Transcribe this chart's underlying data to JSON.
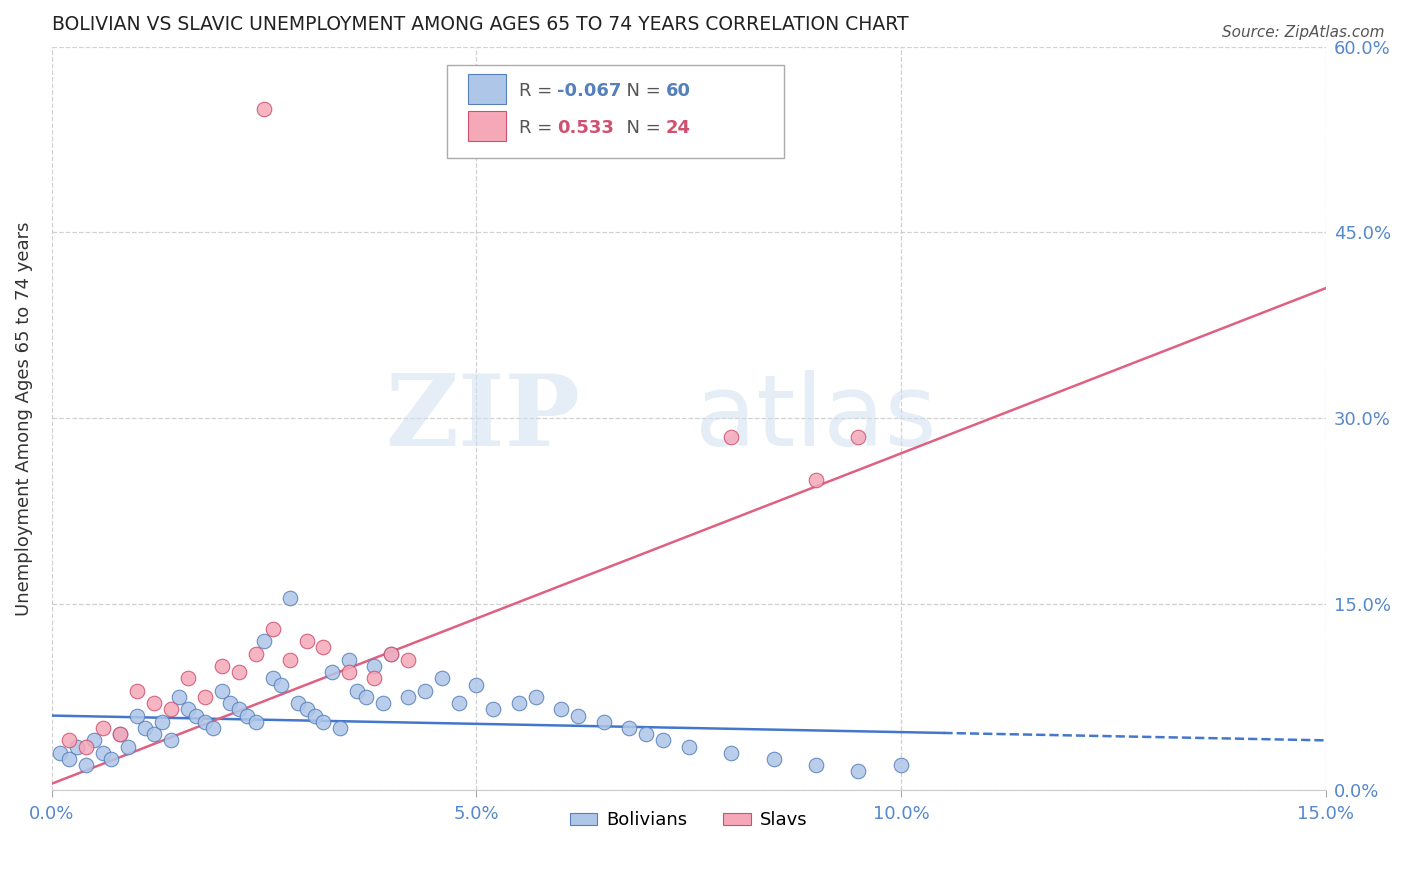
{
  "title": "BOLIVIAN VS SLAVIC UNEMPLOYMENT AMONG AGES 65 TO 74 YEARS CORRELATION CHART",
  "source": "Source: ZipAtlas.com",
  "ylabel": "Unemployment Among Ages 65 to 74 years",
  "xlim": [
    0,
    0.15
  ],
  "ylim": [
    0,
    0.6
  ],
  "xticks": [
    0.0,
    0.05,
    0.1,
    0.15
  ],
  "yticks": [
    0.0,
    0.15,
    0.3,
    0.45,
    0.6
  ],
  "xticklabels": [
    "0.0%",
    "5.0%",
    "10.0%",
    "15.0%"
  ],
  "yticklabels": [
    "0.0%",
    "15.0%",
    "30.0%",
    "45.0%",
    "60.0%"
  ],
  "bolivian_color": "#aec6e8",
  "slavic_color": "#f4a8b8",
  "bolivian_edge": "#5580bb",
  "slavic_edge": "#d05070",
  "bolivian_line_color": "#4477cc",
  "slavic_line_color": "#e06080",
  "legend_r_bolivian": "-0.067",
  "legend_n_bolivian": "60",
  "legend_r_slavic": "0.533",
  "legend_n_slavic": "24",
  "watermark_zip": "ZIP",
  "watermark_atlas": "atlas",
  "title_color": "#222222",
  "axis_color": "#5588cc",
  "grid_color": "#cccccc",
  "bolivians_x": [
    0.001,
    0.002,
    0.003,
    0.004,
    0.005,
    0.006,
    0.007,
    0.008,
    0.009,
    0.01,
    0.011,
    0.012,
    0.013,
    0.014,
    0.015,
    0.016,
    0.017,
    0.018,
    0.019,
    0.02,
    0.021,
    0.022,
    0.023,
    0.024,
    0.025,
    0.026,
    0.027,
    0.028,
    0.029,
    0.03,
    0.031,
    0.032,
    0.033,
    0.034,
    0.035,
    0.036,
    0.037,
    0.038,
    0.039,
    0.04,
    0.042,
    0.044,
    0.046,
    0.048,
    0.05,
    0.052,
    0.055,
    0.057,
    0.06,
    0.062,
    0.065,
    0.068,
    0.07,
    0.072,
    0.075,
    0.08,
    0.085,
    0.09,
    0.095,
    0.1
  ],
  "bolivians_y": [
    0.03,
    0.025,
    0.035,
    0.02,
    0.04,
    0.03,
    0.025,
    0.045,
    0.035,
    0.06,
    0.05,
    0.045,
    0.055,
    0.04,
    0.075,
    0.065,
    0.06,
    0.055,
    0.05,
    0.08,
    0.07,
    0.065,
    0.06,
    0.055,
    0.12,
    0.09,
    0.085,
    0.155,
    0.07,
    0.065,
    0.06,
    0.055,
    0.095,
    0.05,
    0.105,
    0.08,
    0.075,
    0.1,
    0.07,
    0.11,
    0.075,
    0.08,
    0.09,
    0.07,
    0.085,
    0.065,
    0.07,
    0.075,
    0.065,
    0.06,
    0.055,
    0.05,
    0.045,
    0.04,
    0.035,
    0.03,
    0.025,
    0.02,
    0.015,
    0.02
  ],
  "slavs_x": [
    0.002,
    0.004,
    0.006,
    0.008,
    0.01,
    0.012,
    0.014,
    0.016,
    0.018,
    0.02,
    0.022,
    0.024,
    0.026,
    0.028,
    0.03,
    0.032,
    0.035,
    0.038,
    0.04,
    0.042,
    0.025,
    0.08,
    0.09,
    0.095
  ],
  "slavs_y": [
    0.04,
    0.035,
    0.05,
    0.045,
    0.08,
    0.07,
    0.065,
    0.09,
    0.075,
    0.1,
    0.095,
    0.11,
    0.13,
    0.105,
    0.12,
    0.115,
    0.095,
    0.09,
    0.11,
    0.105,
    0.55,
    0.285,
    0.25,
    0.285
  ],
  "bol_line_x": [
    0.0,
    0.15
  ],
  "bol_line_y": [
    0.06,
    0.04
  ],
  "bol_line_solid_end": 0.105,
  "slav_line_x": [
    0.0,
    0.15
  ],
  "slav_line_y": [
    0.005,
    0.405
  ]
}
